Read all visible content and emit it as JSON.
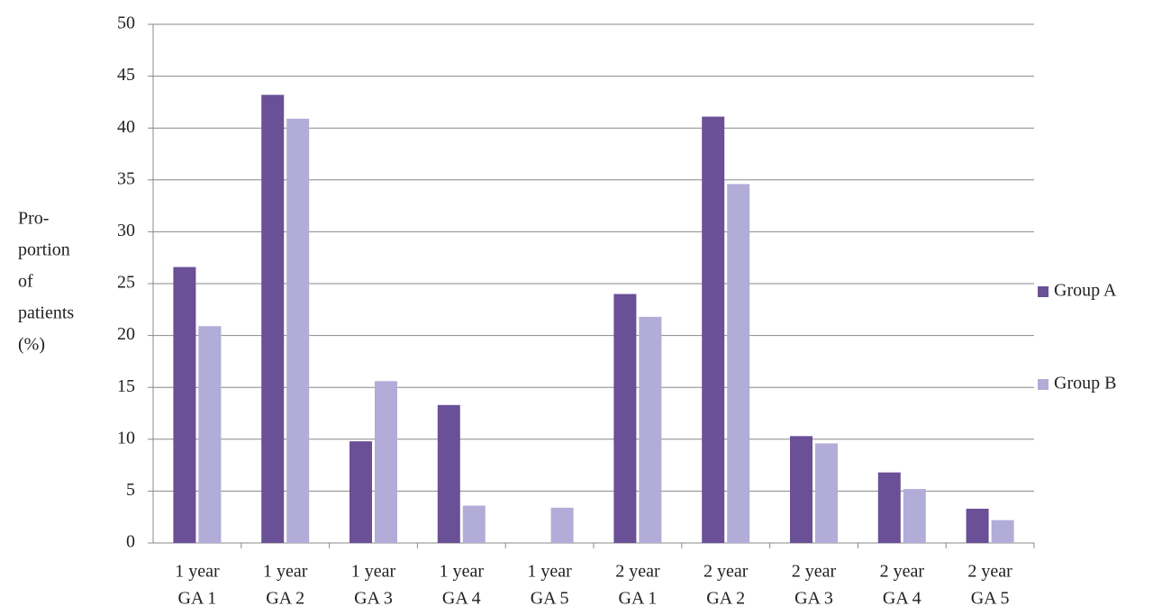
{
  "chart_data": {
    "type": "bar",
    "y_label": [
      "Pro-",
      "portion",
      "of",
      "patients",
      "(%)"
    ],
    "categories": [
      [
        "1 year",
        "GA 1"
      ],
      [
        "1 year",
        "GA 2"
      ],
      [
        "1 year",
        "GA 3"
      ],
      [
        "1 year",
        "GA 4"
      ],
      [
        "1 year",
        "GA 5"
      ],
      [
        "2 year",
        "GA 1"
      ],
      [
        "2 year",
        "GA 2"
      ],
      [
        "2 year",
        "GA 3"
      ],
      [
        "2 year",
        "GA 4"
      ],
      [
        "2 year",
        "GA 5"
      ]
    ],
    "series": [
      {
        "name": "Group A",
        "color": "#6a5096",
        "values": [
          26.6,
          43.2,
          9.8,
          13.3,
          0,
          24.0,
          41.1,
          10.3,
          6.8,
          3.3
        ]
      },
      {
        "name": "Group B",
        "color": "#b2acd8",
        "values": [
          20.9,
          40.9,
          15.6,
          3.6,
          3.4,
          21.8,
          34.6,
          9.6,
          5.2,
          2.2
        ]
      }
    ],
    "ylim": [
      0,
      50
    ],
    "yticks": [
      0,
      5,
      10,
      15,
      20,
      25,
      30,
      35,
      40,
      45,
      50
    ],
    "grid": true,
    "legend": "right"
  }
}
